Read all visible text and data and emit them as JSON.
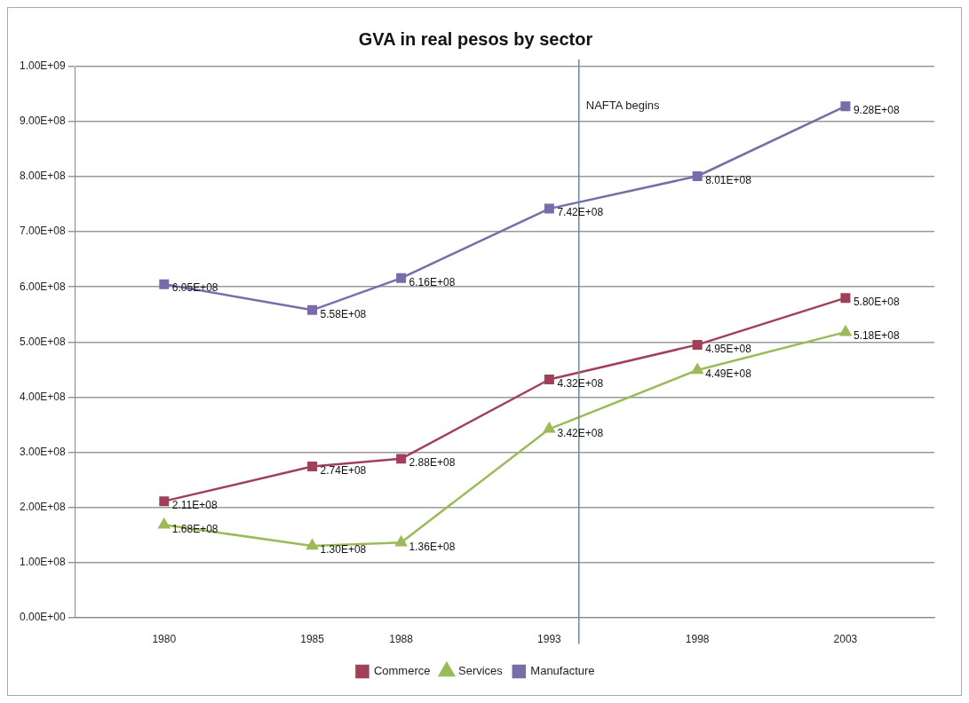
{
  "chart_data": {
    "type": "line",
    "title": "GVA in real pesos by sector",
    "x": [
      1980,
      1985,
      1988,
      1993,
      1998,
      2003
    ],
    "xlim": [
      1977,
      2006
    ],
    "xticks": [
      1980,
      1985,
      1988,
      1993,
      1998,
      2003
    ],
    "series": [
      {
        "name": "Commerce",
        "color": "#a0405a",
        "marker": "square",
        "values": [
          211000000,
          274000000,
          288000000,
          432000000,
          495000000,
          580000000
        ],
        "value_labels": [
          "2.11E+08",
          "2.74E+08",
          "2.88E+08",
          "4.32E+08",
          "4.95E+08",
          "5.80E+08"
        ]
      },
      {
        "name": "Services",
        "color": "#9bbb59",
        "marker": "triangle",
        "values": [
          168000000,
          130000000,
          136000000,
          342000000,
          449000000,
          518000000
        ],
        "value_labels": [
          "1.68E+08",
          "1.30E+08",
          "1.36E+08",
          "3.42E+08",
          "4.49E+08",
          "5.18E+08"
        ]
      },
      {
        "name": "Manufacture",
        "color": "#7a6ca8",
        "marker": "square",
        "values": [
          605000000,
          558000000,
          616000000,
          742000000,
          801000000,
          928000000
        ],
        "value_labels": [
          "6.05E+08",
          "5.58E+08",
          "6.16E+08",
          "7.42E+08",
          "8.01E+08",
          "9.28E+08"
        ]
      }
    ],
    "ylim": [
      0,
      1000000000
    ],
    "yticks": [
      {
        "value": 0,
        "label": "0.00E+00"
      },
      {
        "value": 100000000,
        "label": "1.00E+08"
      },
      {
        "value": 200000000,
        "label": "2.00E+08"
      },
      {
        "value": 300000000,
        "label": "3.00E+08"
      },
      {
        "value": 400000000,
        "label": "4.00E+08"
      },
      {
        "value": 500000000,
        "label": "5.00E+08"
      },
      {
        "value": 600000000,
        "label": "6.00E+08"
      },
      {
        "value": 700000000,
        "label": "7.00E+08"
      },
      {
        "value": 800000000,
        "label": "8.00E+08"
      },
      {
        "value": 900000000,
        "label": "9.00E+08"
      },
      {
        "value": 1000000000,
        "label": "1.00E+09"
      }
    ],
    "ref_lines": [
      {
        "axis": "x",
        "value": 1994,
        "label": "NAFTA begins",
        "color": "#5b8db8"
      }
    ],
    "grid": "y",
    "legend": "bottom"
  }
}
